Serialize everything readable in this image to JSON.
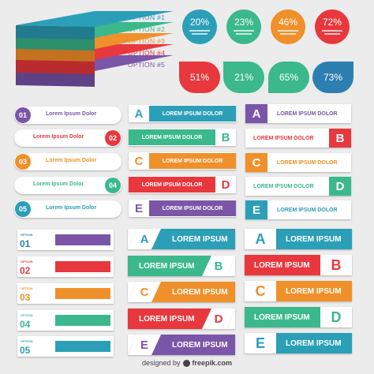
{
  "colors": {
    "teal": "#2c9fb8",
    "green": "#3bb98d",
    "orange": "#f0902a",
    "red": "#e8383d",
    "purple": "#7b56a8",
    "blue": "#2c7fb0"
  },
  "stack": {
    "options": [
      "OPTION #1",
      "OPTION #2",
      "OPTION #3",
      "OPTION #4",
      "OPTION #5"
    ]
  },
  "circles": [
    "20%",
    "23%",
    "46%",
    "72%"
  ],
  "drops": [
    "51%",
    "21%",
    "65%",
    "73%"
  ],
  "pills": [
    {
      "num": "01",
      "text": "Lorem Ipsum Dolor"
    },
    {
      "num": "02",
      "text": "Lorem Ipsum Dolor"
    },
    {
      "num": "03",
      "text": "Lorem Ipsum Dolor"
    },
    {
      "num": "04",
      "text": "Lorem Ipsum Dolor"
    },
    {
      "num": "05",
      "text": "Lorem Ipsum Dolor"
    }
  ],
  "bands": [
    {
      "letter": "A",
      "text": "LOREM IPSUM DOLOR"
    },
    {
      "letter": "B",
      "text": "LOREM IPSUM DOLOR"
    },
    {
      "letter": "C",
      "text": "LOREM IPSUM DOLOR"
    },
    {
      "letter": "D",
      "text": "LOREM IPSUM DOLOR"
    },
    {
      "letter": "E",
      "text": "LOREM IPSUM DOLOR"
    }
  ],
  "arrow_bands": [
    {
      "letter": "A",
      "text": "LOREM IPSUM DOLOR"
    },
    {
      "letter": "B",
      "text": "LOREM IPSUM DOLOR"
    },
    {
      "letter": "C",
      "text": "LOREM IPSUM DOLOR"
    },
    {
      "letter": "D",
      "text": "LOREM IPSUM DOLOR"
    },
    {
      "letter": "E",
      "text": "LOREM IPSUM DOLOR"
    }
  ],
  "option_boxes": [
    {
      "label": "OPTION",
      "num": "01"
    },
    {
      "label": "OPTION",
      "num": "02"
    },
    {
      "label": "OPTION",
      "num": "03"
    },
    {
      "label": "OPTION",
      "num": "04"
    },
    {
      "label": "OPTION",
      "num": "05"
    }
  ],
  "slant_bands": [
    {
      "letter": "A",
      "text": "LOREM IPSUM"
    },
    {
      "letter": "B",
      "text": "LOREM IPSUM"
    },
    {
      "letter": "C",
      "text": "LOREM IPSUM"
    },
    {
      "letter": "D",
      "text": "LOREM IPSUM"
    },
    {
      "letter": "E",
      "text": "LOREM IPSUM"
    }
  ],
  "big_bands": [
    {
      "letter": "A",
      "text": "LOREM IPSUM"
    },
    {
      "letter": "B",
      "text": "LOREM IPSUM"
    },
    {
      "letter": "C",
      "text": "LOREM IPSUM"
    },
    {
      "letter": "D",
      "text": "LOREM IPSUM"
    },
    {
      "letter": "E",
      "text": "LOREM IPSUM"
    }
  ],
  "footer": {
    "text": "designed by",
    "brand": "freepik.com"
  }
}
